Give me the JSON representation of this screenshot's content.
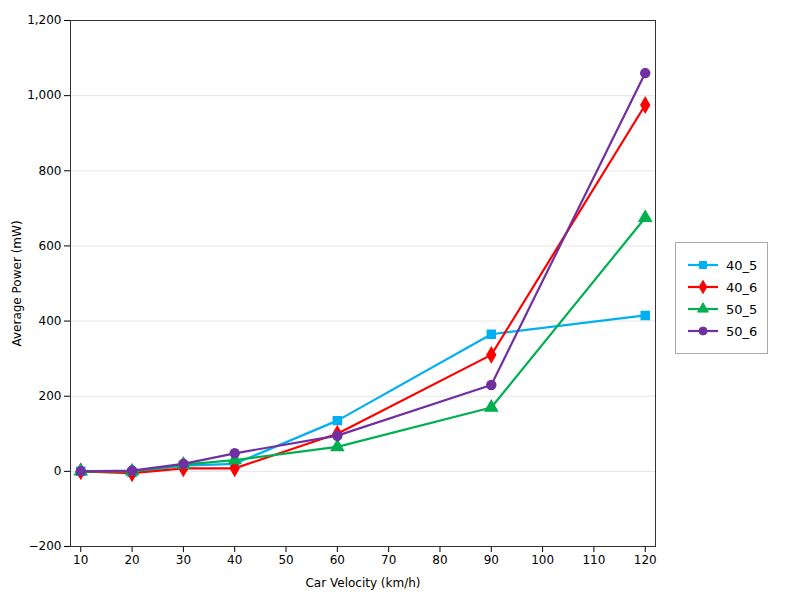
{
  "chart_data": {
    "type": "line",
    "xlabel": "Car Velocity (km/h)",
    "ylabel": "Average Power (mW)",
    "x": [
      10,
      20,
      30,
      40,
      60,
      90,
      120
    ],
    "series": [
      {
        "name": "40_5",
        "color": "#00B0F0",
        "marker": "square",
        "values": [
          0,
          -3,
          15,
          20,
          135,
          365,
          415
        ]
      },
      {
        "name": "40_6",
        "color": "#FF0000",
        "marker": "diamond",
        "values": [
          0,
          -5,
          8,
          8,
          100,
          310,
          975
        ]
      },
      {
        "name": "50_5",
        "color": "#00B050",
        "marker": "triangle",
        "values": [
          0,
          0,
          18,
          30,
          65,
          170,
          675
        ]
      },
      {
        "name": "50_6",
        "color": "#7030A0",
        "marker": "circle",
        "values": [
          0,
          2,
          20,
          48,
          95,
          230,
          1060
        ]
      }
    ],
    "xlim": [
      8,
      122
    ],
    "ylim": [
      -200,
      1200
    ],
    "xticks": [
      10,
      20,
      30,
      40,
      50,
      60,
      70,
      80,
      90,
      100,
      110,
      120
    ],
    "yticks": [
      -200,
      0,
      200,
      400,
      600,
      800,
      1000,
      1200
    ],
    "grid": "y",
    "legend": "right"
  }
}
